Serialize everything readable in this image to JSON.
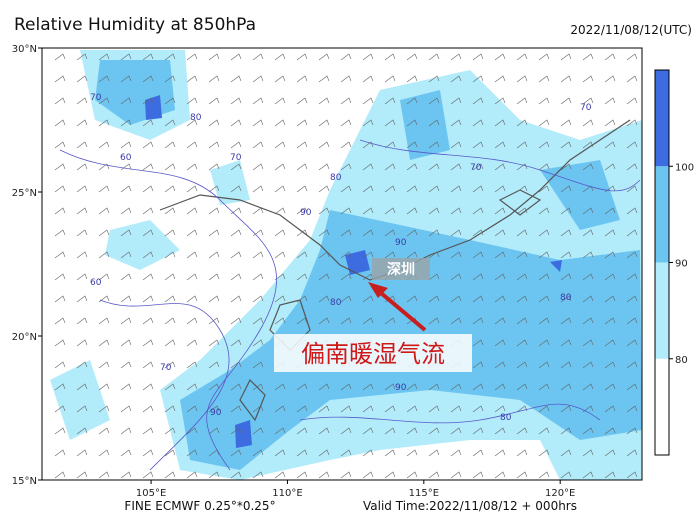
{
  "header": {
    "title": "Relative Humidity at 850hPa",
    "time": "2022/11/08/12(UTC)"
  },
  "map": {
    "xlim": [
      101,
      123
    ],
    "ylim": [
      15,
      30
    ],
    "xticks": [
      {
        "value": 105,
        "label": "105°E"
      },
      {
        "value": 110,
        "label": "110°E"
      },
      {
        "value": 115,
        "label": "115°E"
      },
      {
        "value": 120,
        "label": "120°E"
      }
    ],
    "yticks": [
      {
        "value": 15,
        "label": "15°N"
      },
      {
        "value": 20,
        "label": "20°N"
      },
      {
        "value": 25,
        "label": "25°N"
      },
      {
        "value": 30,
        "label": "30°N"
      }
    ],
    "contour_labels": [
      70,
      80,
      60,
      70,
      90,
      80,
      70,
      90,
      80,
      90,
      60,
      70,
      80,
      90,
      70,
      80
    ]
  },
  "colorbar": {
    "range": [
      70,
      110
    ],
    "ticks": [
      80,
      90,
      100
    ],
    "colors": [
      "#ffffff",
      "#b2ecfb",
      "#6cc5f0",
      "#3d6be0"
    ]
  },
  "annotations": {
    "city": "深圳",
    "flow": "偏南暖湿气流"
  },
  "footer": {
    "model": "FINE ECMWF 0.25°*0.25°",
    "valid": "Valid Time:2022/11/08/12 + 000hrs"
  }
}
